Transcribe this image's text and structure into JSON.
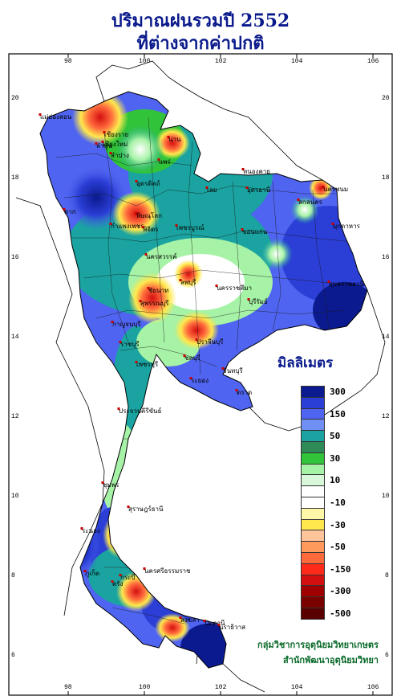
{
  "title": {
    "line1": "ปริมาณฝนรวมปี  2552",
    "line2": "ที่ต่างจากค่าปกติ"
  },
  "axes": {
    "x_ticks": [
      "98",
      "100",
      "102",
      "104",
      "106"
    ],
    "y_ticks": [
      "20",
      "18",
      "16",
      "14",
      "12",
      "10",
      "8",
      "6"
    ]
  },
  "legend": {
    "title": "มิลลิเมตร",
    "items": [
      {
        "label": "300",
        "color": "#0b1a8f"
      },
      {
        "label": "",
        "color": "#2b3ed6"
      },
      {
        "label": "150",
        "color": "#4f64f0"
      },
      {
        "label": "",
        "color": "#6f8ff2"
      },
      {
        "label": "50",
        "color": "#1aa3a0"
      },
      {
        "label": "",
        "color": "#2e8b57"
      },
      {
        "label": "30",
        "color": "#31c43a"
      },
      {
        "label": "",
        "color": "#a6f2a6"
      },
      {
        "label": "10",
        "color": "#d9f7d9"
      },
      {
        "label": "",
        "color": "#ffffff"
      },
      {
        "label": "-10",
        "color": "#ffffff"
      },
      {
        "label": "",
        "color": "#fff7a8"
      },
      {
        "label": "-30",
        "color": "#ffe84d"
      },
      {
        "label": "",
        "color": "#ffc49a"
      },
      {
        "label": "-50",
        "color": "#ff9a5c"
      },
      {
        "label": "",
        "color": "#ff6a3d"
      },
      {
        "label": "-150",
        "color": "#ff2a1a"
      },
      {
        "label": "",
        "color": "#d40f0f"
      },
      {
        "label": "-300",
        "color": "#a00000"
      },
      {
        "label": "",
        "color": "#7a0000"
      },
      {
        "label": "-500",
        "color": "#5a0000"
      }
    ]
  },
  "places": [
    "เชียงใหม่",
    "เชียงราย",
    "น่าน",
    "ลำปาง",
    "แพร่",
    "แม่ฮ่องสอน",
    "ลำพูน",
    "อุตรดิตถ์",
    "ตาก",
    "พิษณุโลก",
    "กำแพงเพชร",
    "พิจิตร",
    "เพชรบูรณ์",
    "หนองคาย",
    "อุดรธานี",
    "สกลนคร",
    "นครพนม",
    "มุกดาหาร",
    "ขอนแก่น",
    "เลย",
    "นครสวรรค์",
    "นครราชสีมา",
    "บุรีรัมย์",
    "อุบลราชธานี",
    "ลพบุรี",
    "สุพรรณบุรี",
    "ชัยนาท",
    "ปราจีนบุรี",
    "กาญจนบุรี",
    "ราชบุรี",
    "ชลบุรี",
    "ระยอง",
    "จันทบุรี",
    "ตราด",
    "เพชรบุรี",
    "ประจวบคีรีขันธ์",
    "ชุมพร",
    "ระนอง",
    "สุราษฎร์ธานี",
    "นครศรีธรรมราช",
    "ภูเก็ต",
    "กระบี่",
    "ตรัง",
    "สงขลา",
    "ปัตตานี",
    "นราธิวาส"
  ],
  "credit": {
    "line1": "กลุ่มวิชาการอุตุนิยมวิทยาเกษตร",
    "line2": "สำนักพัฒนาอุตุนิยมวิทยา"
  }
}
